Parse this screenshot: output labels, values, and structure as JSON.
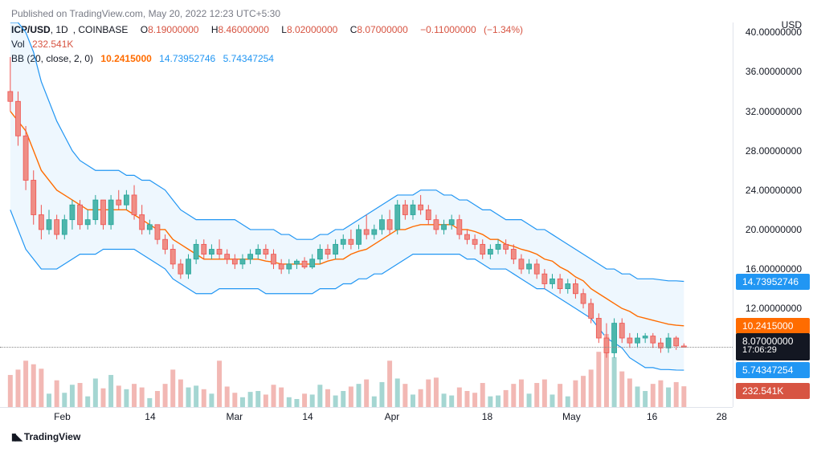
{
  "publish": {
    "prefix": "Published on",
    "site": "TradingView.com,",
    "date": "May 20, 2022 12:23 UTC+5:30"
  },
  "header": {
    "symbol": "ICP/USD",
    "interval": "1D",
    "exchange": "COINBASE",
    "O": "8.19000000",
    "H": "8.46000000",
    "L": "8.02000000",
    "C": "8.07000000",
    "change": "−0.11000000",
    "pct": "(−1.34%)"
  },
  "volume": {
    "label": "Vol",
    "value": "232.541K"
  },
  "bb": {
    "label": "BB (20, close, 2, 0)",
    "mid": "10.2415000",
    "upper": "14.73952746",
    "lower": "5.74347254"
  },
  "yaxis": {
    "currency": "USD",
    "ticks": [
      40,
      36,
      32,
      28,
      24,
      20,
      16,
      12
    ],
    "format_decimals": 8
  },
  "xaxis": {
    "ticks": [
      {
        "label": "Feb",
        "pos": 0.085
      },
      {
        "label": "14",
        "pos": 0.205
      },
      {
        "label": "Mar",
        "pos": 0.32
      },
      {
        "label": "14",
        "pos": 0.42
      },
      {
        "label": "Apr",
        "pos": 0.535
      },
      {
        "label": "18",
        "pos": 0.665
      },
      {
        "label": "May",
        "pos": 0.78
      },
      {
        "label": "16",
        "pos": 0.89
      },
      {
        "label": "28",
        "pos": 0.985
      }
    ]
  },
  "axis_labels": [
    {
      "value": "14.73952746",
      "yval": 14.73952746,
      "bg": "#2196f3"
    },
    {
      "value": "10.2415000",
      "yval": 10.2415,
      "bg": "#ff6c00"
    },
    {
      "value": "8.07000000",
      "sub": "17:06:29",
      "yval": 8.07,
      "bg": "#131722",
      "double": true
    },
    {
      "value": "5.74347254",
      "yval": 5.74347254,
      "bg": "#2196f3"
    },
    {
      "value": "232.541K",
      "yval": 3.6,
      "bg": "#d75442"
    }
  ],
  "chart": {
    "type": "candlestick-bb-volume",
    "ymin": 2,
    "ymax": 41,
    "colors": {
      "up": "#4db6ac",
      "up_border": "#26a69a",
      "down": "#ef8e86",
      "down_border": "#ef5350",
      "bb_line": "#2196f3",
      "bb_fill": "#2196f3",
      "bb_fill_opacity": 0.08,
      "mid_line": "#ff6c00",
      "dotted": "#888888",
      "grid": "#e0e3eb",
      "vol_up": "#a5d6d2",
      "vol_down": "#f2b8b4"
    },
    "vol_max": 820,
    "candles": [
      {
        "o": 34.0,
        "h": 37.5,
        "l": 32.0,
        "c": 33.0,
        "v": 360,
        "up": false
      },
      {
        "o": 33.0,
        "h": 34.0,
        "l": 28.5,
        "c": 29.5,
        "v": 420,
        "up": false
      },
      {
        "o": 29.5,
        "h": 30.5,
        "l": 24.0,
        "c": 25.0,
        "v": 520,
        "up": false
      },
      {
        "o": 25.0,
        "h": 26.0,
        "l": 20.5,
        "c": 21.5,
        "v": 480,
        "up": false
      },
      {
        "o": 21.5,
        "h": 22.5,
        "l": 19.0,
        "c": 20.0,
        "v": 430,
        "up": false
      },
      {
        "o": 20.0,
        "h": 22.0,
        "l": 19.5,
        "c": 21.0,
        "v": 150,
        "up": true
      },
      {
        "o": 21.0,
        "h": 21.5,
        "l": 19.0,
        "c": 19.5,
        "v": 300,
        "up": false
      },
      {
        "o": 19.5,
        "h": 21.5,
        "l": 19.0,
        "c": 21.0,
        "v": 160,
        "up": true
      },
      {
        "o": 21.0,
        "h": 23.0,
        "l": 20.0,
        "c": 22.5,
        "v": 250,
        "up": true
      },
      {
        "o": 22.5,
        "h": 23.0,
        "l": 20.0,
        "c": 20.5,
        "v": 270,
        "up": false
      },
      {
        "o": 20.5,
        "h": 22.0,
        "l": 20.0,
        "c": 21.0,
        "v": 120,
        "up": true
      },
      {
        "o": 21.0,
        "h": 23.5,
        "l": 20.5,
        "c": 23.0,
        "v": 320,
        "up": true
      },
      {
        "o": 23.0,
        "h": 21.5,
        "l": 20.0,
        "c": 20.5,
        "v": 210,
        "up": false
      },
      {
        "o": 20.5,
        "h": 23.5,
        "l": 20.0,
        "c": 23.0,
        "v": 360,
        "up": true
      },
      {
        "o": 23.0,
        "h": 24.0,
        "l": 22.0,
        "c": 22.5,
        "v": 240,
        "up": false
      },
      {
        "o": 22.5,
        "h": 24.0,
        "l": 22.0,
        "c": 23.5,
        "v": 200,
        "up": true
      },
      {
        "o": 23.5,
        "h": 24.5,
        "l": 21.0,
        "c": 21.5,
        "v": 260,
        "up": false
      },
      {
        "o": 21.5,
        "h": 22.5,
        "l": 19.5,
        "c": 20.0,
        "v": 220,
        "up": false
      },
      {
        "o": 20.0,
        "h": 21.0,
        "l": 19.5,
        "c": 20.5,
        "v": 100,
        "up": true
      },
      {
        "o": 20.5,
        "h": 20.5,
        "l": 18.5,
        "c": 19.0,
        "v": 180,
        "up": false
      },
      {
        "o": 19.0,
        "h": 19.5,
        "l": 17.5,
        "c": 18.0,
        "v": 260,
        "up": false
      },
      {
        "o": 18.0,
        "h": 18.5,
        "l": 16.0,
        "c": 16.5,
        "v": 420,
        "up": false
      },
      {
        "o": 16.5,
        "h": 17.0,
        "l": 15.0,
        "c": 15.5,
        "v": 310,
        "up": false
      },
      {
        "o": 15.5,
        "h": 17.5,
        "l": 15.0,
        "c": 17.0,
        "v": 220,
        "up": true
      },
      {
        "o": 17.0,
        "h": 19.0,
        "l": 16.5,
        "c": 18.5,
        "v": 240,
        "up": true
      },
      {
        "o": 18.5,
        "h": 19.0,
        "l": 17.0,
        "c": 17.5,
        "v": 200,
        "up": false
      },
      {
        "o": 17.5,
        "h": 18.5,
        "l": 17.0,
        "c": 18.0,
        "v": 150,
        "up": true
      },
      {
        "o": 18.0,
        "h": 19.0,
        "l": 17.0,
        "c": 17.5,
        "v": 520,
        "up": false
      },
      {
        "o": 17.5,
        "h": 18.0,
        "l": 16.5,
        "c": 17.0,
        "v": 230,
        "up": false
      },
      {
        "o": 17.0,
        "h": 17.5,
        "l": 16.0,
        "c": 16.5,
        "v": 160,
        "up": false
      },
      {
        "o": 16.5,
        "h": 17.5,
        "l": 16.0,
        "c": 17.0,
        "v": 110,
        "up": true
      },
      {
        "o": 17.0,
        "h": 18.0,
        "l": 16.5,
        "c": 17.5,
        "v": 170,
        "up": true
      },
      {
        "o": 17.5,
        "h": 18.5,
        "l": 17.0,
        "c": 18.0,
        "v": 180,
        "up": true
      },
      {
        "o": 18.0,
        "h": 18.5,
        "l": 17.0,
        "c": 17.5,
        "v": 140,
        "up": false
      },
      {
        "o": 17.5,
        "h": 18.0,
        "l": 16.0,
        "c": 16.5,
        "v": 250,
        "up": false
      },
      {
        "o": 16.5,
        "h": 17.0,
        "l": 15.5,
        "c": 16.0,
        "v": 220,
        "up": false
      },
      {
        "o": 16.0,
        "h": 17.0,
        "l": 15.5,
        "c": 16.5,
        "v": 110,
        "up": true
      },
      {
        "o": 16.5,
        "h": 17.0,
        "l": 16.0,
        "c": 16.8,
        "v": 90,
        "up": true
      },
      {
        "o": 16.8,
        "h": 17.2,
        "l": 16.0,
        "c": 16.2,
        "v": 150,
        "up": false
      },
      {
        "o": 16.2,
        "h": 17.5,
        "l": 16.0,
        "c": 17.0,
        "v": 140,
        "up": true
      },
      {
        "o": 17.0,
        "h": 18.5,
        "l": 16.5,
        "c": 18.0,
        "v": 250,
        "up": true
      },
      {
        "o": 18.0,
        "h": 18.5,
        "l": 17.0,
        "c": 17.5,
        "v": 200,
        "up": false
      },
      {
        "o": 17.5,
        "h": 19.0,
        "l": 17.0,
        "c": 18.5,
        "v": 130,
        "up": true
      },
      {
        "o": 18.5,
        "h": 19.5,
        "l": 18.0,
        "c": 19.0,
        "v": 180,
        "up": true
      },
      {
        "o": 19.0,
        "h": 20.0,
        "l": 18.0,
        "c": 18.5,
        "v": 230,
        "up": false
      },
      {
        "o": 18.5,
        "h": 20.5,
        "l": 18.0,
        "c": 20.0,
        "v": 260,
        "up": true
      },
      {
        "o": 20.0,
        "h": 21.5,
        "l": 19.0,
        "c": 19.5,
        "v": 310,
        "up": false
      },
      {
        "o": 19.5,
        "h": 20.5,
        "l": 19.0,
        "c": 20.0,
        "v": 120,
        "up": true
      },
      {
        "o": 20.0,
        "h": 21.5,
        "l": 19.5,
        "c": 21.0,
        "v": 280,
        "up": true
      },
      {
        "o": 21.0,
        "h": 22.0,
        "l": 19.5,
        "c": 20.0,
        "v": 520,
        "up": false
      },
      {
        "o": 20.0,
        "h": 23.0,
        "l": 19.5,
        "c": 22.5,
        "v": 320,
        "up": true
      },
      {
        "o": 22.5,
        "h": 23.0,
        "l": 21.0,
        "c": 21.5,
        "v": 260,
        "up": false
      },
      {
        "o": 21.5,
        "h": 23.0,
        "l": 21.0,
        "c": 22.5,
        "v": 140,
        "up": true
      },
      {
        "o": 22.5,
        "h": 23.5,
        "l": 21.5,
        "c": 22.0,
        "v": 200,
        "up": false
      },
      {
        "o": 22.0,
        "h": 22.5,
        "l": 20.5,
        "c": 21.0,
        "v": 310,
        "up": false
      },
      {
        "o": 21.0,
        "h": 21.5,
        "l": 19.5,
        "c": 20.0,
        "v": 330,
        "up": false
      },
      {
        "o": 20.0,
        "h": 21.0,
        "l": 19.5,
        "c": 20.5,
        "v": 150,
        "up": true
      },
      {
        "o": 20.5,
        "h": 21.5,
        "l": 20.0,
        "c": 21.0,
        "v": 130,
        "up": true
      },
      {
        "o": 21.0,
        "h": 21.5,
        "l": 19.0,
        "c": 19.5,
        "v": 220,
        "up": false
      },
      {
        "o": 19.5,
        "h": 20.0,
        "l": 18.5,
        "c": 19.0,
        "v": 180,
        "up": false
      },
      {
        "o": 19.0,
        "h": 19.5,
        "l": 18.0,
        "c": 18.5,
        "v": 160,
        "up": false
      },
      {
        "o": 18.5,
        "h": 19.0,
        "l": 17.0,
        "c": 17.5,
        "v": 270,
        "up": false
      },
      {
        "o": 17.5,
        "h": 18.5,
        "l": 17.0,
        "c": 18.0,
        "v": 120,
        "up": true
      },
      {
        "o": 18.0,
        "h": 19.0,
        "l": 17.5,
        "c": 18.5,
        "v": 130,
        "up": true
      },
      {
        "o": 18.5,
        "h": 19.0,
        "l": 17.5,
        "c": 18.0,
        "v": 190,
        "up": false
      },
      {
        "o": 18.0,
        "h": 18.5,
        "l": 16.5,
        "c": 17.0,
        "v": 260,
        "up": false
      },
      {
        "o": 17.0,
        "h": 17.5,
        "l": 15.5,
        "c": 16.0,
        "v": 310,
        "up": false
      },
      {
        "o": 16.0,
        "h": 17.0,
        "l": 15.5,
        "c": 16.5,
        "v": 150,
        "up": true
      },
      {
        "o": 16.5,
        "h": 17.0,
        "l": 15.0,
        "c": 15.5,
        "v": 270,
        "up": false
      },
      {
        "o": 15.5,
        "h": 16.0,
        "l": 14.0,
        "c": 14.5,
        "v": 310,
        "up": false
      },
      {
        "o": 14.5,
        "h": 15.5,
        "l": 14.0,
        "c": 15.0,
        "v": 140,
        "up": true
      },
      {
        "o": 15.0,
        "h": 15.5,
        "l": 13.5,
        "c": 14.0,
        "v": 260,
        "up": false
      },
      {
        "o": 14.0,
        "h": 15.0,
        "l": 13.5,
        "c": 14.5,
        "v": 120,
        "up": true
      },
      {
        "o": 14.5,
        "h": 15.0,
        "l": 13.0,
        "c": 13.5,
        "v": 300,
        "up": false
      },
      {
        "o": 13.5,
        "h": 14.0,
        "l": 12.0,
        "c": 12.5,
        "v": 350,
        "up": false
      },
      {
        "o": 12.5,
        "h": 13.0,
        "l": 10.5,
        "c": 11.0,
        "v": 420,
        "up": false
      },
      {
        "o": 11.0,
        "h": 11.5,
        "l": 8.5,
        "c": 9.0,
        "v": 620,
        "up": false
      },
      {
        "o": 9.0,
        "h": 10.5,
        "l": 7.0,
        "c": 7.5,
        "v": 820,
        "up": false
      },
      {
        "o": 7.5,
        "h": 11.0,
        "l": 7.0,
        "c": 10.5,
        "v": 560,
        "up": true
      },
      {
        "o": 10.5,
        "h": 11.0,
        "l": 8.5,
        "c": 9.0,
        "v": 400,
        "up": false
      },
      {
        "o": 9.0,
        "h": 9.5,
        "l": 8.0,
        "c": 8.5,
        "v": 320,
        "up": false
      },
      {
        "o": 8.5,
        "h": 9.5,
        "l": 8.0,
        "c": 9.0,
        "v": 230,
        "up": true
      },
      {
        "o": 9.0,
        "h": 9.5,
        "l": 8.5,
        "c": 9.2,
        "v": 180,
        "up": true
      },
      {
        "o": 9.2,
        "h": 9.5,
        "l": 8.0,
        "c": 8.5,
        "v": 260,
        "up": false
      },
      {
        "o": 8.5,
        "h": 9.0,
        "l": 7.5,
        "c": 8.0,
        "v": 300,
        "up": false
      },
      {
        "o": 8.0,
        "h": 9.5,
        "l": 7.5,
        "c": 9.0,
        "v": 220,
        "up": true
      },
      {
        "o": 9.0,
        "h": 9.2,
        "l": 7.8,
        "c": 8.2,
        "v": 280,
        "up": false
      },
      {
        "o": 8.19,
        "h": 8.46,
        "l": 8.02,
        "c": 8.07,
        "v": 233,
        "up": false
      }
    ],
    "bb_upper": [
      41,
      41,
      40,
      38,
      35,
      33,
      31,
      29.5,
      28,
      27,
      26.5,
      26,
      26,
      26,
      26,
      25.5,
      25.5,
      25,
      25,
      24.5,
      24,
      23,
      22,
      21.5,
      21,
      21,
      21,
      21,
      21,
      21,
      20.5,
      20,
      20,
      20,
      20,
      19.5,
      19.5,
      19,
      19,
      19,
      19.5,
      19.5,
      20,
      20,
      20.5,
      21,
      21.5,
      22,
      22.5,
      23,
      23.5,
      23.5,
      23.5,
      24,
      24,
      24,
      23.5,
      23.5,
      23,
      23,
      22.5,
      22,
      22,
      21.5,
      21,
      21,
      21,
      20.5,
      20,
      20,
      19.5,
      19,
      18.5,
      18,
      17.5,
      17,
      16.5,
      16,
      16,
      15.5,
      15.5,
      15,
      15,
      15,
      14.9,
      14.8,
      14.8,
      14.74
    ],
    "bb_lower": [
      22,
      20,
      18,
      17,
      16,
      16,
      16,
      16.5,
      17,
      17.5,
      17.5,
      17.5,
      18,
      18,
      18,
      18,
      18,
      17.5,
      17,
      16.5,
      16,
      15,
      14.5,
      14,
      13.5,
      13.5,
      13.5,
      14,
      14,
      14,
      14,
      14,
      14,
      13.5,
      13.5,
      13.5,
      13.5,
      13.5,
      13.5,
      13.5,
      14,
      14,
      14,
      14.5,
      14.5,
      15,
      15,
      15.5,
      15.5,
      16,
      16.5,
      17,
      17.5,
      17.5,
      17.5,
      17.5,
      17.5,
      17.5,
      17.5,
      17,
      17,
      16.5,
      16,
      16,
      16,
      15.5,
      15,
      14.5,
      14,
      14,
      13.5,
      13,
      12.5,
      12,
      11.5,
      11,
      10,
      9,
      8.5,
      8,
      7,
      6.5,
      6,
      6,
      5.8,
      5.8,
      5.75,
      5.74
    ],
    "bb_mid": [
      32,
      31,
      30,
      28,
      26,
      25,
      24,
      23.5,
      23,
      22.5,
      22,
      22,
      22,
      22,
      22,
      22,
      21.5,
      21,
      20.5,
      20,
      20,
      19,
      18.5,
      18,
      17.5,
      17,
      17,
      17,
      17,
      17,
      17,
      17,
      17,
      16.8,
      16.7,
      16.5,
      16.5,
      16.5,
      16.5,
      16.5,
      16.5,
      16.8,
      17,
      17,
      17.5,
      17.8,
      18,
      18.5,
      19,
      19.5,
      20,
      20,
      20.3,
      20.5,
      20.5,
      20.5,
      20.5,
      20.5,
      20,
      20,
      19.8,
      19.5,
      19,
      19,
      18.5,
      18.3,
      18,
      17.8,
      17.5,
      17,
      16.8,
      16.2,
      15.8,
      15.2,
      14.8,
      14,
      13.5,
      13,
      12.5,
      12,
      11.7,
      11.2,
      11,
      10.8,
      10.6,
      10.4,
      10.3,
      10.24
    ]
  },
  "logo": {
    "text": "TradingView"
  }
}
